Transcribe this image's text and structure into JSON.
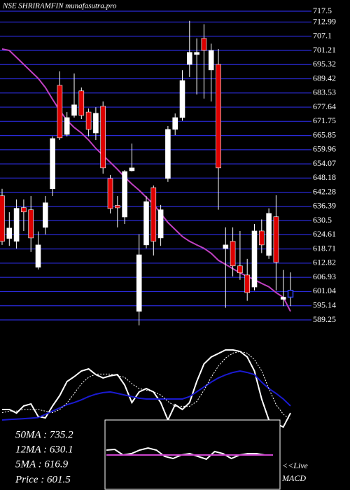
{
  "chart_data": [
    {
      "type": "candlestick",
      "title": "NSE SHRIRAMFIN munafasutra.pro",
      "open": [
        640.8,
        623.1,
        621.9,
        635.9,
        635.0,
        611.1,
        627.7,
        643.7,
        686.7,
        666.3,
        674.2,
        684.4,
        675.6,
        666.9,
        678.0,
        648.0,
        636.8,
        632.0,
        651.2,
        592.8,
        620.4,
        644.2,
        623.3,
        648.0,
        668.4,
        673.3,
        695.4,
        699.5,
        706.2,
        693.1,
        695.4,
        618.9,
        621.9,
        611.7,
        607.9,
        602.9,
        626.2,
        616.0,
        632.1,
        597.8,
        598.7
      ],
      "close": [
        621.9,
        627.4,
        635.6,
        634.1,
        623.3,
        620.4,
        637.9,
        664.6,
        664.9,
        673.3,
        678.6,
        674.2,
        668.4,
        675.1,
        652.4,
        635.5,
        635.8,
        650.9,
        652.4,
        616.3,
        638.4,
        621.9,
        635.0,
        668.4,
        673.3,
        688.7,
        700.4,
        700.4,
        701.2,
        701.2,
        652.4,
        620.4,
        611.7,
        608.8,
        600.6,
        626.2,
        620.4,
        633.5,
        613.2,
        598.7,
        601.5
      ],
      "high": [
        643.7,
        634.0,
        639.3,
        639.3,
        640.7,
        626.0,
        640.7,
        665.5,
        692.5,
        675.6,
        691.6,
        685.8,
        677.1,
        677.6,
        680.0,
        649.5,
        640.7,
        651.5,
        662.5,
        624.8,
        640.7,
        645.1,
        637.0,
        669.8,
        675.0,
        693.0,
        713.5,
        706.2,
        712.1,
        704.0,
        701.8,
        627.7,
        627.7,
        626.2,
        614.6,
        629.1,
        631.0,
        635.6,
        641.0,
        610.0,
        609.0
      ],
      "low": [
        620.4,
        620.0,
        618.9,
        626.2,
        617.5,
        610.2,
        624.8,
        640.7,
        664.0,
        665.5,
        673.3,
        672.7,
        665.5,
        664.0,
        650.0,
        633.5,
        627.7,
        629.1,
        650.9,
        587.0,
        619.0,
        616.0,
        620.0,
        646.6,
        666.0,
        672.0,
        690.2,
        682.9,
        681.2,
        680.0,
        635.0,
        594.3,
        607.3,
        605.9,
        597.2,
        601.5,
        617.0,
        614.6,
        601.5,
        595.0,
        595.0
      ],
      "up_color": "#ffffff",
      "down_color": "#dd0000",
      "last_color": "#3344ff",
      "ma": {
        "color": "#c040c0",
        "values": [
          701.8,
          701.2,
          698.3,
          695.4,
          692.5,
          689.6,
          685.8,
          680.9,
          676.2,
          672.2,
          669.2,
          666.9,
          664.0,
          660.5,
          657.6,
          654.7,
          651.8,
          648.6,
          645.7,
          643.1,
          640.2,
          637.3,
          633.5,
          629.7,
          626.8,
          623.9,
          621.9,
          620.4,
          619.0,
          616.9,
          614.0,
          612.3,
          610.5,
          608.8,
          607.3,
          605.9,
          604.4,
          603.0,
          600.6,
          598.6,
          592.8
        ]
      },
      "ylim": [
        589.25,
        717.5
      ],
      "yticks": [
        717.5,
        712.99,
        707.1,
        701.21,
        695.32,
        689.42,
        683.53,
        677.64,
        671.75,
        665.85,
        659.96,
        654.07,
        648.18,
        642.28,
        636.39,
        630.5,
        624.61,
        618.71,
        612.82,
        606.93,
        601.04,
        595.14,
        589.25
      ],
      "grid": true,
      "grid_color": "#2a2ad6"
    },
    {
      "type": "line",
      "ylim": [
        0,
        100
      ],
      "series": [
        {
          "color": "#ffffff",
          "style": "solid",
          "values": [
            50,
            50,
            47.8,
            52.2,
            53.5,
            45.7,
            44.8,
            52.2,
            58.7,
            67.4,
            70.4,
            73.9,
            75.2,
            71.7,
            69.6,
            70.9,
            71.7,
            65.2,
            54.3,
            60.9,
            63,
            60.9,
            54.3,
            43.5,
            53,
            50,
            54.3,
            67.4,
            78.3,
            82.6,
            84.8,
            87,
            87,
            86.1,
            82.6,
            73.9,
            56.5,
            43.5,
            41.3,
            39.1,
            47.8
          ]
        },
        {
          "color": "#1a1ad0",
          "style": "solid",
          "values": [
            43.5,
            43.8,
            44,
            44.3,
            44.6,
            45,
            47,
            49,
            51,
            53,
            54.3,
            56,
            58,
            59.5,
            60.5,
            60.9,
            60,
            59,
            58,
            57,
            56.5,
            56.5,
            56.5,
            56.5,
            56.5,
            56.5,
            58,
            61,
            64,
            67,
            69.6,
            71.5,
            73,
            73.9,
            73,
            71.7,
            67,
            63,
            60,
            56.5,
            52.2
          ]
        },
        {
          "color": "#ffffff",
          "style": "dotted",
          "values": [
            48,
            49,
            49,
            50,
            50,
            50,
            49,
            48,
            50,
            54,
            60,
            66,
            70,
            72,
            72,
            72,
            71,
            70,
            66,
            63,
            62,
            61,
            59,
            55,
            52,
            52,
            52,
            55,
            62,
            70,
            77,
            82,
            85,
            86,
            85,
            81,
            74,
            63,
            53,
            47,
            44
          ]
        }
      ]
    },
    {
      "type": "line",
      "ylim": [
        0,
        100
      ],
      "series": [
        {
          "color": "#ffffff",
          "style": "solid",
          "values": [
            57,
            58,
            50,
            52,
            57,
            60,
            57,
            48,
            45,
            50,
            52,
            48,
            44,
            55,
            52,
            45,
            50,
            52,
            52,
            50,
            50
          ]
        },
        {
          "color": "#cc44cc",
          "style": "solid",
          "values": [
            50,
            50,
            50,
            50,
            50,
            50,
            50,
            50,
            50,
            50,
            50,
            50,
            50,
            50,
            50,
            50,
            50,
            50,
            50,
            50,
            50
          ]
        }
      ]
    }
  ],
  "info_labels": [
    "50MA : 735.2",
    "12MA : 630.1",
    "5MA : 616.9",
    "Price   : 601.5"
  ],
  "live_label": [
    "<<Live",
    "MACD"
  ]
}
